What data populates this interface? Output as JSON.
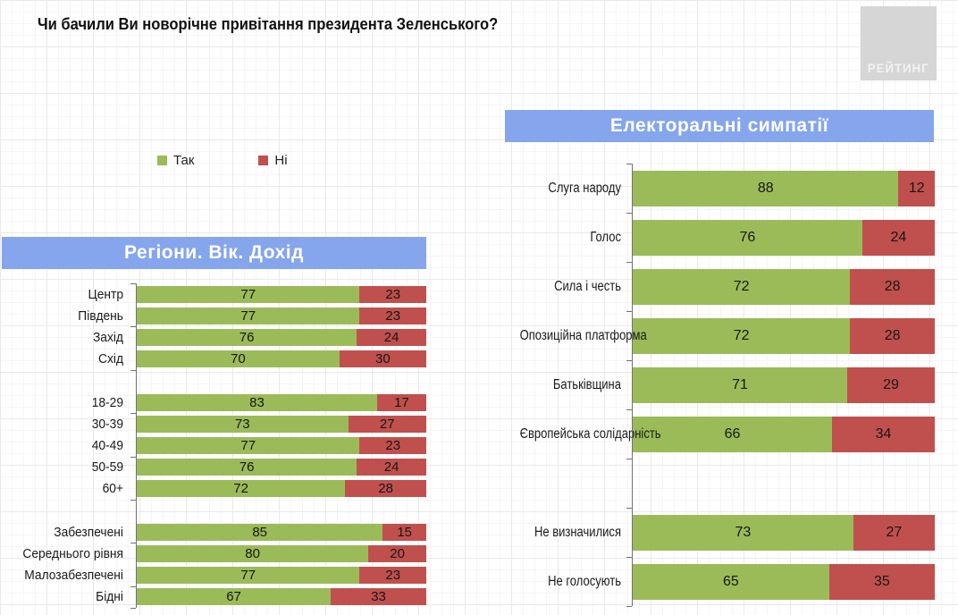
{
  "title": "Чи бачили Ви новорічне привітання президента Зеленського?",
  "logo": {
    "text": "РЕЙТИНГ"
  },
  "legend": {
    "yes": "Так",
    "no": "Ні"
  },
  "colors": {
    "yes": "#9BBB59",
    "no": "#C0504D",
    "header_bg": "#85A5EC",
    "header_text": "#FFFFFF",
    "value_text": "#161616",
    "axis": "#737373"
  },
  "chart_data": [
    {
      "type": "bar",
      "stacked": true,
      "orientation": "horizontal",
      "title": "Регіони. Вік. Дохід",
      "xlim": [
        0,
        100
      ],
      "value_format": "percent",
      "data_labels": true,
      "legend": [
        "Так",
        "Ні"
      ],
      "legend_position": "top",
      "grid": false,
      "groups": [
        {
          "categories": [
            "Центр",
            "Південь",
            "Захід",
            "Схід"
          ],
          "series": [
            {
              "name": "Так",
              "values": [
                77,
                77,
                76,
                70
              ]
            },
            {
              "name": "Ні",
              "values": [
                23,
                23,
                24,
                30
              ]
            }
          ]
        },
        {
          "categories": [
            "18-29",
            "30-39",
            "40-49",
            "50-59",
            "60+"
          ],
          "series": [
            {
              "name": "Так",
              "values": [
                83,
                73,
                77,
                76,
                72
              ]
            },
            {
              "name": "Ні",
              "values": [
                17,
                27,
                23,
                24,
                28
              ]
            }
          ]
        },
        {
          "categories": [
            "Забезпечені",
            "Середнього рівня",
            "Малозабезпечені",
            "Бідні"
          ],
          "series": [
            {
              "name": "Так",
              "values": [
                85,
                80,
                77,
                67
              ]
            },
            {
              "name": "Ні",
              "values": [
                15,
                20,
                23,
                33
              ]
            }
          ]
        }
      ]
    },
    {
      "type": "bar",
      "stacked": true,
      "orientation": "horizontal",
      "title": "Електоральні симпатії",
      "xlim": [
        0,
        100
      ],
      "value_format": "percent",
      "data_labels": true,
      "legend": [
        "Так",
        "Ні"
      ],
      "legend_position": "top",
      "grid": false,
      "groups": [
        {
          "categories": [
            "Слуга народу",
            "Голос",
            "Сила і честь",
            "Опозиційна платформа",
            "Батьківщина",
            "Європейська солідарність"
          ],
          "series": [
            {
              "name": "Так",
              "values": [
                88,
                76,
                72,
                72,
                71,
                66
              ]
            },
            {
              "name": "Ні",
              "values": [
                12,
                24,
                28,
                28,
                29,
                34
              ]
            }
          ]
        },
        {
          "categories": [
            "Не визначилися",
            "Не голосують"
          ],
          "series": [
            {
              "name": "Так",
              "values": [
                73,
                65
              ]
            },
            {
              "name": "Ні",
              "values": [
                27,
                35
              ]
            }
          ]
        }
      ]
    }
  ]
}
